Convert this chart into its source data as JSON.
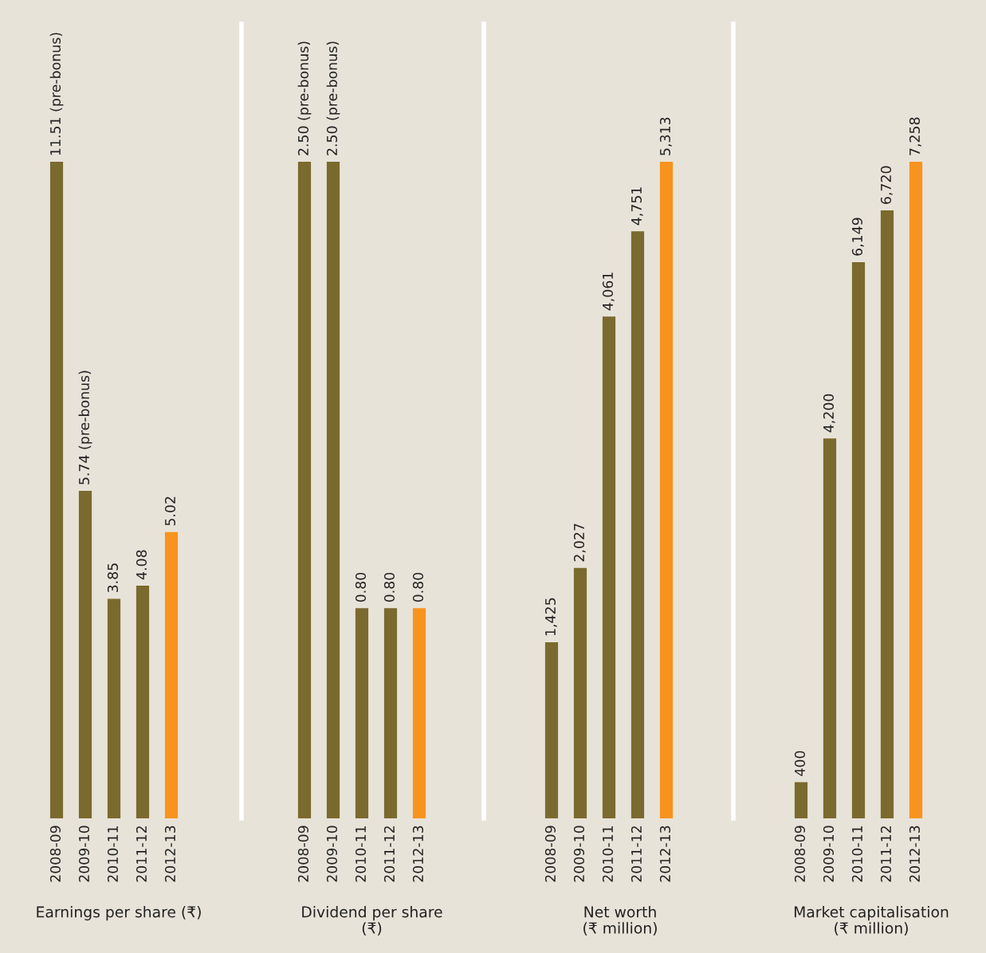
{
  "chart_data": [
    {
      "type": "bar",
      "xlabel": "Earnings per share (₹)",
      "categories": [
        "2008-09",
        "2009-10",
        "2010-11",
        "2011-12",
        "2012-13"
      ],
      "values": [
        11.51,
        5.74,
        3.85,
        4.08,
        5.02
      ],
      "colors": [
        "#7a6a2e",
        "#7a6a2e",
        "#7a6a2e",
        "#7a6a2e",
        "#f7931e"
      ],
      "value_labels": [
        "11.51 (pre-bonus)",
        "5.74 (pre-bonus)",
        "3.85",
        "4.08",
        "5.02"
      ],
      "tick_labels": "x",
      "grid": false,
      "legend": false
    },
    {
      "type": "bar",
      "xlabel": "Dividend per share\n(₹)",
      "categories": [
        "2008-09",
        "2009-10",
        "2010-11",
        "2011-12",
        "2012-13"
      ],
      "values": [
        2.5,
        2.5,
        0.8,
        0.8,
        0.8
      ],
      "colors": [
        "#7a6a2e",
        "#7a6a2e",
        "#7a6a2e",
        "#7a6a2e",
        "#f7931e"
      ],
      "value_labels": [
        "2.50 (pre-bonus)",
        "2.50 (pre-bonus)",
        "0.80",
        "0.80",
        "0.80"
      ],
      "tick_labels": "x",
      "grid": false,
      "legend": false
    },
    {
      "type": "bar",
      "xlabel": "Net worth\n(₹ million)",
      "categories": [
        "2008-09",
        "2009-10",
        "2010-11",
        "2011-12",
        "2012-13"
      ],
      "values": [
        1425,
        2027,
        4061,
        4751,
        5313
      ],
      "colors": [
        "#7a6a2e",
        "#7a6a2e",
        "#7a6a2e",
        "#7a6a2e",
        "#f7931e"
      ],
      "value_labels": [
        "1,425",
        "2,027",
        "4,061",
        "4,751",
        "5,313"
      ],
      "tick_labels": "x",
      "grid": false,
      "legend": false
    },
    {
      "type": "bar",
      "xlabel": "Market capitalisation\n(₹ million)",
      "categories": [
        "2008-09",
        "2009-10",
        "2010-11",
        "2011-12",
        "2012-13"
      ],
      "values": [
        400,
        4200,
        6149,
        6720,
        7258
      ],
      "colors": [
        "#7a6a2e",
        "#7a6a2e",
        "#7a6a2e",
        "#7a6a2e",
        "#f7931e"
      ],
      "value_labels": [
        "400",
        "4,200",
        "6,149",
        "6,720",
        "7,258"
      ],
      "tick_labels": "x",
      "grid": false,
      "legend": false
    }
  ]
}
